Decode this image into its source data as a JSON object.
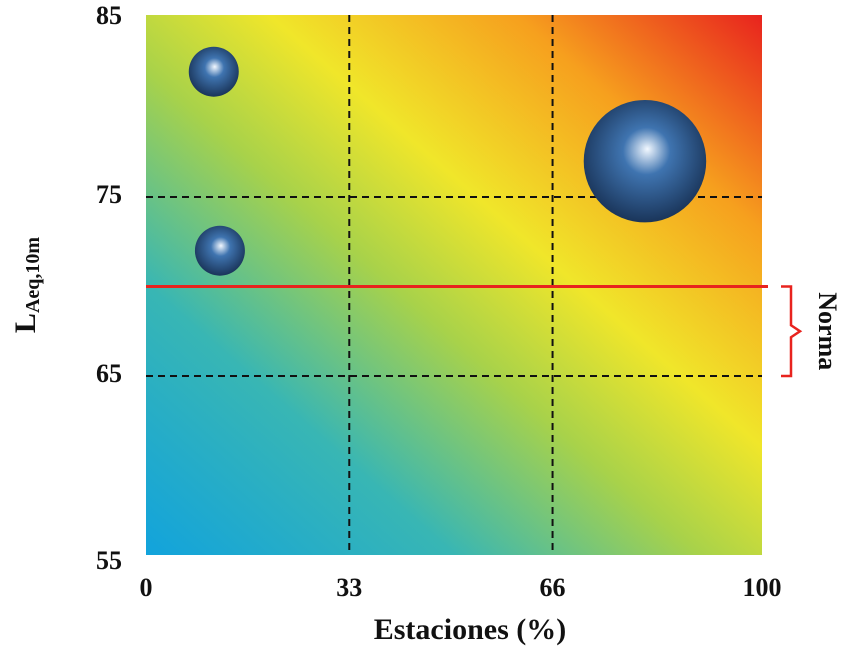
{
  "chart_data": {
    "type": "bubble",
    "x_label": "Estaciones (%)",
    "y_label": {
      "main": "L",
      "sub": "Aeq,10m"
    },
    "xlim": [
      0,
      100
    ],
    "xticks": [
      0,
      33,
      66,
      100
    ],
    "ylim": [
      55,
      85
    ],
    "yticks": [
      55,
      65,
      75,
      85
    ],
    "grid": true,
    "series": [
      {
        "color": "#3f74b0",
        "x": [
          11,
          12,
          81
        ],
        "values": [
          82,
          72,
          77
        ],
        "sizes": [
          1,
          1,
          6
        ]
      }
    ],
    "threshold": {
      "value": 70,
      "color": "#e8231e"
    },
    "annotation": {
      "text": "Norma",
      "range": [
        65,
        70
      ],
      "color": "#e8231e"
    }
  }
}
